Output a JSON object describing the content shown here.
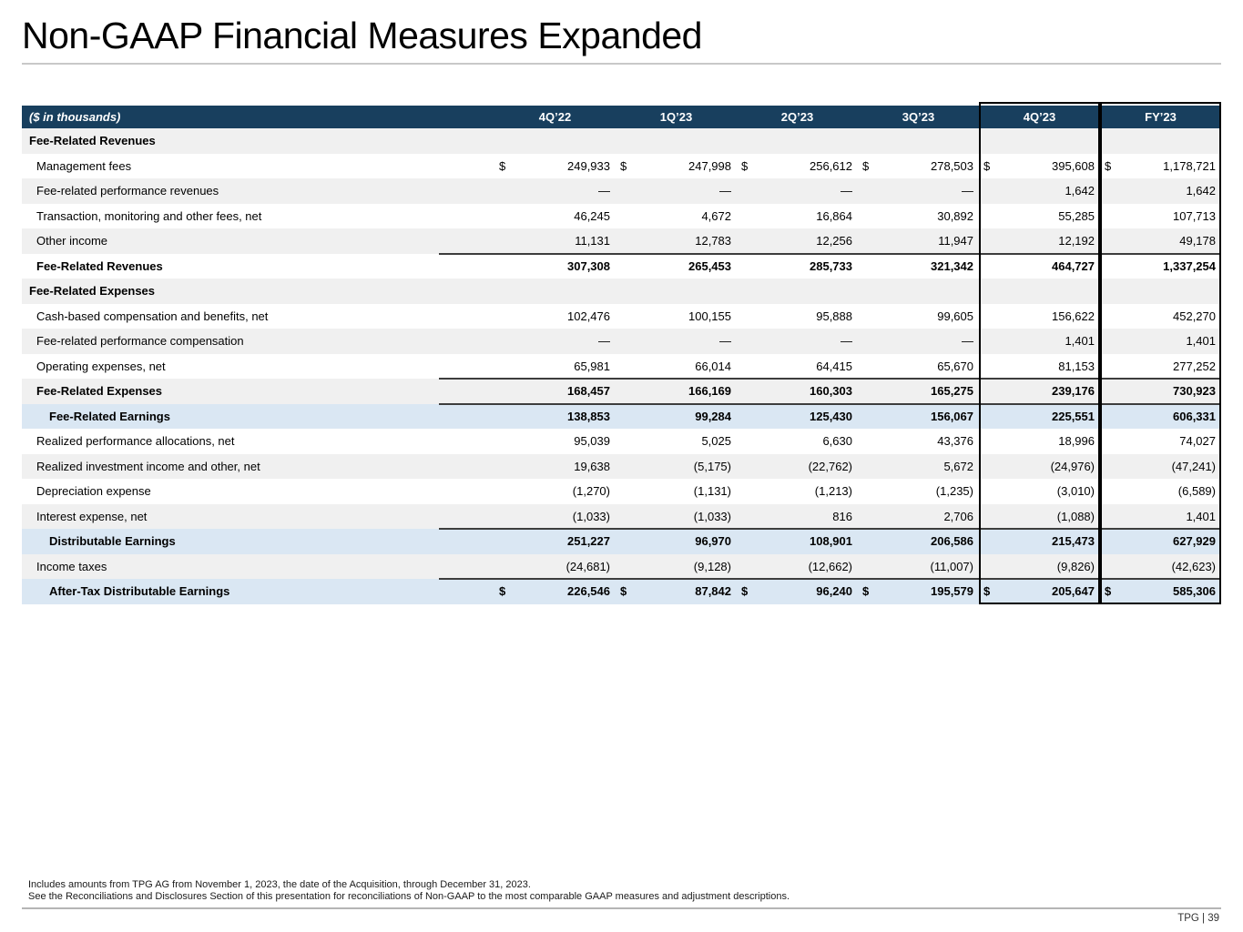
{
  "title": "Non-GAAP Financial Measures Expanded",
  "table": {
    "unit_label": "($ in thousands)",
    "columns": [
      "4Q’22",
      "1Q’23",
      "2Q’23",
      "3Q’23",
      "4Q’23",
      "FY’23"
    ],
    "boxed_columns": [
      "4Q’23",
      "FY’23"
    ],
    "rows": [
      {
        "label": "Fee-Related Revenues",
        "type": "section",
        "shade": "gray",
        "values": []
      },
      {
        "label": "Management fees",
        "type": "data",
        "shade": "white",
        "dollar": true,
        "values": [
          "249,933",
          "247,998",
          "256,612",
          "278,503",
          "395,608",
          "1,178,721"
        ]
      },
      {
        "label": "Fee-related performance revenues",
        "type": "data",
        "shade": "gray",
        "values": [
          "—",
          "—",
          "—",
          "—",
          "1,642",
          "1,642"
        ]
      },
      {
        "label": "Transaction, monitoring and other fees, net",
        "type": "data",
        "shade": "white",
        "values": [
          "46,245",
          "4,672",
          "16,864",
          "30,892",
          "55,285",
          "107,713"
        ]
      },
      {
        "label": "Other income",
        "type": "data",
        "shade": "gray",
        "values": [
          "11,131",
          "12,783",
          "12,256",
          "11,947",
          "12,192",
          "49,178"
        ]
      },
      {
        "label": "Fee-Related Revenues",
        "type": "total",
        "shade": "white",
        "rule_above": true,
        "values": [
          "307,308",
          "265,453",
          "285,733",
          "321,342",
          "464,727",
          "1,337,254"
        ]
      },
      {
        "label": "Fee-Related Expenses",
        "type": "section",
        "shade": "gray",
        "values": []
      },
      {
        "label": "Cash-based compensation and benefits, net",
        "type": "data",
        "shade": "white",
        "values": [
          "102,476",
          "100,155",
          "95,888",
          "99,605",
          "156,622",
          "452,270"
        ]
      },
      {
        "label": "Fee-related performance compensation",
        "type": "data",
        "shade": "gray",
        "values": [
          "—",
          "—",
          "—",
          "—",
          "1,401",
          "1,401"
        ]
      },
      {
        "label": "Operating expenses, net",
        "type": "data",
        "shade": "white",
        "values": [
          "65,981",
          "66,014",
          "64,415",
          "65,670",
          "81,153",
          "277,252"
        ]
      },
      {
        "label": "Fee-Related Expenses",
        "type": "total",
        "shade": "gray",
        "rule_above": true,
        "values": [
          "168,457",
          "166,169",
          "160,303",
          "165,275",
          "239,176",
          "730,923"
        ]
      },
      {
        "label": "Fee-Related Earnings",
        "type": "highlight",
        "shade": "blue",
        "rule_above": true,
        "values": [
          "138,853",
          "99,284",
          "125,430",
          "156,067",
          "225,551",
          "606,331"
        ]
      },
      {
        "label": "Realized performance allocations, net",
        "type": "data",
        "shade": "white",
        "values": [
          "95,039",
          "5,025",
          "6,630",
          "43,376",
          "18,996",
          "74,027"
        ]
      },
      {
        "label": "Realized investment income and other, net",
        "type": "data",
        "shade": "gray",
        "values": [
          "19,638",
          "(5,175)",
          "(22,762)",
          "5,672",
          "(24,976)",
          "(47,241)"
        ]
      },
      {
        "label": "Depreciation expense",
        "type": "data",
        "shade": "white",
        "values": [
          "(1,270)",
          "(1,131)",
          "(1,213)",
          "(1,235)",
          "(3,010)",
          "(6,589)"
        ]
      },
      {
        "label": "Interest expense, net",
        "type": "data",
        "shade": "gray",
        "values": [
          "(1,033)",
          "(1,033)",
          "816",
          "2,706",
          "(1,088)",
          "1,401"
        ]
      },
      {
        "label": "Distributable Earnings",
        "type": "highlight",
        "shade": "blue",
        "rule_above": true,
        "values": [
          "251,227",
          "96,970",
          "108,901",
          "206,586",
          "215,473",
          "627,929"
        ]
      },
      {
        "label": "Income taxes",
        "type": "data",
        "shade": "gray",
        "values": [
          "(24,681)",
          "(9,128)",
          "(12,662)",
          "(11,007)",
          "(9,826)",
          "(42,623)"
        ]
      },
      {
        "label": "After-Tax Distributable Earnings",
        "type": "highlight",
        "shade": "blue",
        "dollar": true,
        "rule_above": true,
        "values": [
          "226,546",
          "87,842",
          "96,240",
          "195,579",
          "205,647",
          "585,306"
        ]
      }
    ]
  },
  "footnotes": [
    "Includes amounts from TPG AG from November 1, 2023, the date of the Acquisition, through December 31, 2023.",
    "See the Reconciliations and Disclosures Section of this presentation for reconciliations of Non-GAAP to the most comparable GAAP measures and adjustment descriptions."
  ],
  "page_footer": "TPG | 39",
  "colors": {
    "header_bg": "#183f5e",
    "highlight_row_bg": "#dae7f3",
    "stripe_bg": "#f0f0f0",
    "box_border": "#000000",
    "accent_rule": "#3d3d3d",
    "dollar_sign": "$"
  }
}
